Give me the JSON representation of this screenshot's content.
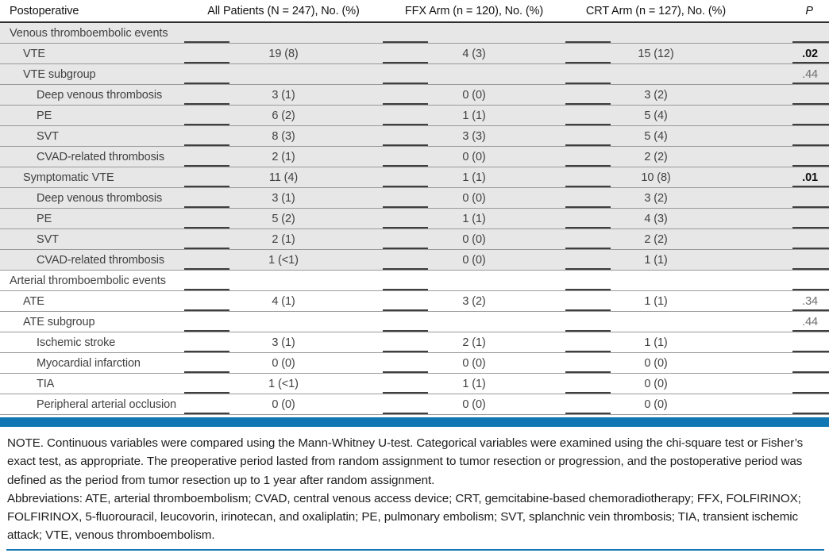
{
  "table": {
    "columns": [
      "Postoperative",
      "All Patients (N = 247), No. (%)",
      "FFX Arm (n = 120), No. (%)",
      "CRT Arm (n = 127), No. (%)",
      "P"
    ],
    "rows": [
      {
        "label": "Venous thromboembolic events",
        "indent": 0,
        "shaded": true,
        "all": "",
        "ffx": "",
        "crt": "",
        "p": "",
        "p_bold": false
      },
      {
        "label": "VTE",
        "indent": 1,
        "shaded": true,
        "all": "19 (8)",
        "ffx": "4 (3)",
        "crt": "15 (12)",
        "p": ".02",
        "p_bold": true
      },
      {
        "label": "VTE subgroup",
        "indent": 1,
        "shaded": true,
        "all": "",
        "ffx": "",
        "crt": "",
        "p": ".44",
        "p_bold": false
      },
      {
        "label": "Deep venous thrombosis",
        "indent": 2,
        "shaded": true,
        "all": "3 (1)",
        "ffx": "0 (0)",
        "crt": "3 (2)",
        "p": "",
        "p_bold": false
      },
      {
        "label": "PE",
        "indent": 2,
        "shaded": true,
        "all": "6 (2)",
        "ffx": "1 (1)",
        "crt": "5 (4)",
        "p": "",
        "p_bold": false
      },
      {
        "label": "SVT",
        "indent": 2,
        "shaded": true,
        "all": "8 (3)",
        "ffx": "3 (3)",
        "crt": "5 (4)",
        "p": "",
        "p_bold": false
      },
      {
        "label": "CVAD-related thrombosis",
        "indent": 2,
        "shaded": true,
        "all": "2 (1)",
        "ffx": "0 (0)",
        "crt": "2 (2)",
        "p": "",
        "p_bold": false
      },
      {
        "label": "Symptomatic VTE",
        "indent": 1,
        "shaded": true,
        "all": "11 (4)",
        "ffx": "1 (1)",
        "crt": "10 (8)",
        "p": ".01",
        "p_bold": true
      },
      {
        "label": "Deep venous thrombosis",
        "indent": 2,
        "shaded": true,
        "all": "3 (1)",
        "ffx": "0 (0)",
        "crt": "3 (2)",
        "p": "",
        "p_bold": false
      },
      {
        "label": "PE",
        "indent": 2,
        "shaded": true,
        "all": "5 (2)",
        "ffx": "1 (1)",
        "crt": "4 (3)",
        "p": "",
        "p_bold": false
      },
      {
        "label": "SVT",
        "indent": 2,
        "shaded": true,
        "all": "2 (1)",
        "ffx": "0 (0)",
        "crt": "2 (2)",
        "p": "",
        "p_bold": false
      },
      {
        "label": "CVAD-related thrombosis",
        "indent": 2,
        "shaded": true,
        "all": "1 (<1)",
        "ffx": "0 (0)",
        "crt": "1 (1)",
        "p": "",
        "p_bold": false
      },
      {
        "label": "Arterial thromboembolic events",
        "indent": 0,
        "shaded": false,
        "all": "",
        "ffx": "",
        "crt": "",
        "p": "",
        "p_bold": false
      },
      {
        "label": "ATE",
        "indent": 1,
        "shaded": false,
        "all": "4 (1)",
        "ffx": "3 (2)",
        "crt": "1 (1)",
        "p": ".34",
        "p_bold": false
      },
      {
        "label": "ATE subgroup",
        "indent": 1,
        "shaded": false,
        "all": "",
        "ffx": "",
        "crt": "",
        "p": ".44",
        "p_bold": false
      },
      {
        "label": "Ischemic stroke",
        "indent": 2,
        "shaded": false,
        "all": "3 (1)",
        "ffx": "2 (1)",
        "crt": "1 (1)",
        "p": "",
        "p_bold": false
      },
      {
        "label": "Myocardial infarction",
        "indent": 2,
        "shaded": false,
        "all": "0 (0)",
        "ffx": "0 (0)",
        "crt": "0 (0)",
        "p": "",
        "p_bold": false
      },
      {
        "label": "TIA",
        "indent": 2,
        "shaded": false,
        "all": "1 (<1)",
        "ffx": "1 (1)",
        "crt": "0 (0)",
        "p": "",
        "p_bold": false
      },
      {
        "label": "Peripheral arterial occlusion",
        "indent": 2,
        "shaded": false,
        "all": "0 (0)",
        "ffx": "0 (0)",
        "crt": "0 (0)",
        "p": "",
        "p_bold": false
      }
    ]
  },
  "notes": {
    "note": "NOTE. Continuous variables were compared using the Mann-Whitney U-test. Categorical variables were examined using the chi-square test or Fisher’s exact test, as appropriate. The preoperative period lasted from random assignment to tumor resection or progression, and the postoperative period was defined as the period from tumor resection up to 1 year after random assignment.",
    "abbreviations": "Abbreviations: ATE, arterial thromboembolism; CVAD, central venous access device; CRT, gemcitabine-based chemoradiotherapy; FFX, FOLFIRINOX; FOLFIRINOX, 5-fluorouracil, leucovorin, irinotecan, and oxaliplatin; PE, pulmonary embolism; SVT, splanchnic vein thrombosis; TIA, transient ischemic attack; VTE, venous thromboembolism."
  },
  "colors": {
    "accent_blue": "#1177b2",
    "shaded_row_gray": "#e7e7e7",
    "separator_gray": "#9a9a9a",
    "dash_dark": "#3f3f3f"
  }
}
